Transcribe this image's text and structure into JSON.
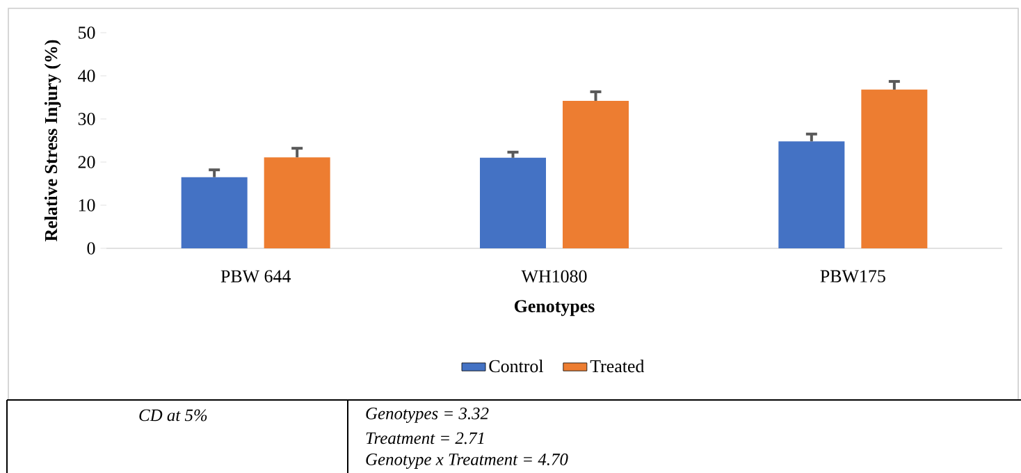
{
  "chart_data": {
    "type": "bar",
    "categories": [
      "PBW 644",
      "WH1080",
      "PBW175"
    ],
    "xlabel": "Genotypes",
    "ylabel": "Relative Stress Injury (%)",
    "series": [
      {
        "name": "Control",
        "color": "#4472c4",
        "values": [
          16.5,
          21.0,
          24.8
        ],
        "errors": [
          [
            16.5,
            18.2
          ],
          [
            21.0,
            22.3
          ],
          [
            24.8,
            26.5
          ]
        ]
      },
      {
        "name": "Treated",
        "color": "#ed7d31",
        "values": [
          21.1,
          34.2,
          36.8
        ],
        "errors": [
          [
            21.1,
            23.2
          ],
          [
            34.2,
            36.3
          ],
          [
            36.8,
            38.7
          ]
        ]
      }
    ],
    "ylim": [
      0,
      50
    ],
    "yticks": [
      0,
      10,
      20,
      30,
      40,
      50
    ],
    "grid": false,
    "legend": "bottom",
    "annotations": [
      "CD at 5%",
      "Genotypes = 3.32",
      "Treatment = 2.71",
      "Genotype x Treatment = 4.70"
    ]
  }
}
